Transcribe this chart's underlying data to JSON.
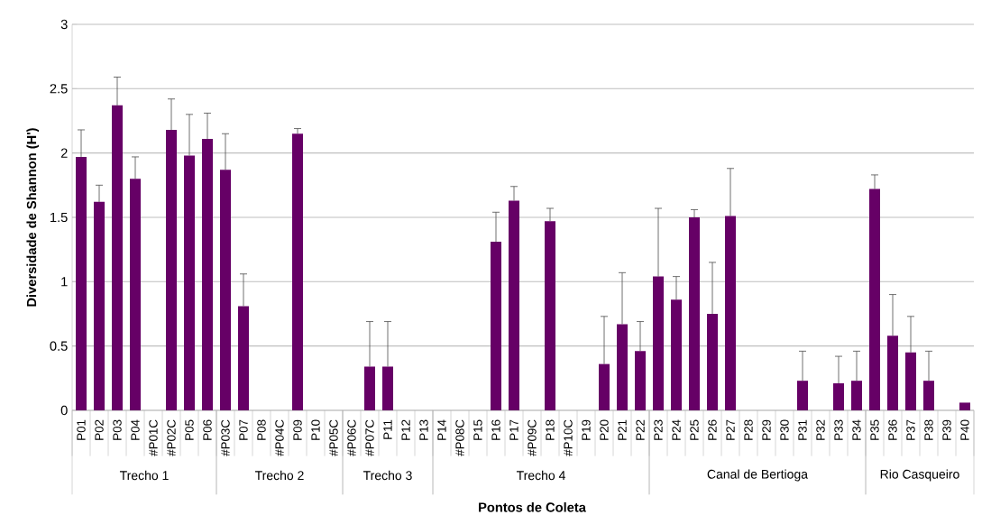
{
  "chart_data": {
    "type": "bar",
    "xlabel": "Pontos de Coleta",
    "ylabel": "Diversidade de Shannon (H')",
    "categories": [
      "P01",
      "P02",
      "P03",
      "P04",
      "#P01C",
      "#P02C",
      "P05",
      "P06",
      "#P03C",
      "P07",
      "P08",
      "#P04C",
      "P09",
      "P10",
      "#P05C",
      "#P06C",
      "#P07C",
      "P11",
      "P12",
      "P13",
      "P14",
      "#P08C",
      "P15",
      "P16",
      "P17",
      "#P09C",
      "P18",
      "#P10C",
      "P19",
      "P20",
      "P21",
      "P22",
      "P23",
      "P24",
      "P25",
      "P26",
      "P27",
      "P28",
      "P29",
      "P30",
      "P31",
      "P32",
      "P33",
      "P34",
      "P35",
      "P36",
      "P37",
      "P38",
      "P39",
      "P40"
    ],
    "values": [
      1.97,
      1.62,
      2.37,
      1.8,
      0,
      2.18,
      1.98,
      2.11,
      1.87,
      0.81,
      0,
      0,
      2.15,
      0,
      0,
      0,
      0.34,
      0.34,
      0,
      0,
      0,
      0,
      0,
      1.31,
      1.63,
      0,
      1.47,
      0,
      0,
      0.36,
      0.67,
      0.46,
      1.04,
      0.86,
      1.5,
      0.75,
      1.51,
      0,
      0,
      0,
      0.23,
      0,
      0.21,
      0.23,
      1.72,
      0.58,
      0.45,
      0.23,
      0,
      0.06
    ],
    "errors": [
      [
        1.97,
        2.18
      ],
      [
        1.62,
        1.75
      ],
      [
        2.37,
        2.59
      ],
      [
        1.8,
        1.97
      ],
      null,
      [
        2.18,
        2.42
      ],
      [
        1.98,
        2.3
      ],
      [
        2.11,
        2.31
      ],
      [
        1.87,
        2.15
      ],
      [
        0.81,
        1.06
      ],
      null,
      null,
      [
        2.15,
        2.19
      ],
      null,
      null,
      null,
      [
        0.34,
        0.69
      ],
      [
        0.34,
        0.69
      ],
      null,
      null,
      null,
      null,
      null,
      [
        1.31,
        1.54
      ],
      [
        1.63,
        1.74
      ],
      null,
      [
        1.47,
        1.57
      ],
      null,
      null,
      [
        0.36,
        0.73
      ],
      [
        0.67,
        1.07
      ],
      [
        0.46,
        0.69
      ],
      [
        1.04,
        1.57
      ],
      [
        0.86,
        1.04
      ],
      [
        1.5,
        1.56
      ],
      [
        0.75,
        1.15
      ],
      [
        1.51,
        1.88
      ],
      null,
      null,
      null,
      [
        0.23,
        0.46
      ],
      null,
      [
        0.21,
        0.42
      ],
      [
        0.23,
        0.46
      ],
      [
        1.72,
        1.83
      ],
      [
        0.58,
        0.9
      ],
      [
        0.45,
        0.73
      ],
      [
        0.23,
        0.46
      ],
      null,
      null
    ],
    "color": "#660066",
    "ylim": [
      0,
      3
    ],
    "yticks": [
      0,
      0.5,
      1,
      1.5,
      2,
      2.5,
      3
    ],
    "grid": "y",
    "annotations": [
      "Trecho 1",
      "Trecho 2",
      "Trecho 3",
      "Trecho 4",
      "Canal de Bertioga",
      "Rio Casqueiro"
    ]
  }
}
